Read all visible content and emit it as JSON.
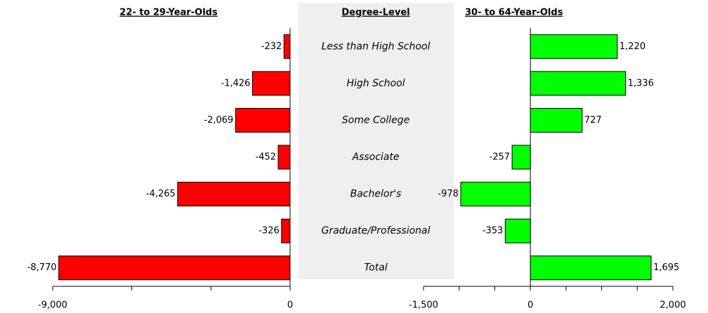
{
  "categories_panel": {
    "title": "Degree-Level",
    "categories": [
      "Less than High School",
      "High School",
      "Some College",
      "Associate",
      "Bachelor's",
      "Graduate/Professional",
      "Total"
    ]
  },
  "chart_data": [
    {
      "type": "hbar",
      "title": "22- to 29-Year-Olds",
      "values": [
        -232,
        -1426,
        -2069,
        -452,
        -4265,
        -326,
        -8770
      ],
      "value_labels": [
        "-232",
        "-1,426",
        "-2,069",
        "-452",
        "-4,265",
        "-326",
        "-8,770"
      ],
      "color": "#ff0000",
      "xlim": [
        -9000,
        0
      ],
      "xticks": [
        {
          "value": -9000,
          "label": "-9,000"
        },
        0
      ],
      "minor_xticks": [
        -6000,
        -3000
      ]
    },
    {
      "type": "hbar",
      "title": "30- to 64-Year-Olds",
      "values": [
        1220,
        1336,
        727,
        -257,
        -978,
        -353,
        1695
      ],
      "value_labels": [
        "1,220",
        "1,336",
        "727",
        "-257",
        "-978",
        "-353",
        "1,695"
      ],
      "color": "#00ff00",
      "xlim": [
        -1500,
        2000
      ],
      "xticks": [
        {
          "value": -1500,
          "label": "-1,500"
        },
        0,
        {
          "value": 2000,
          "label": "2,000"
        }
      ],
      "minor_xticks": [
        -1000,
        -500,
        500,
        1000,
        1500
      ]
    }
  ]
}
